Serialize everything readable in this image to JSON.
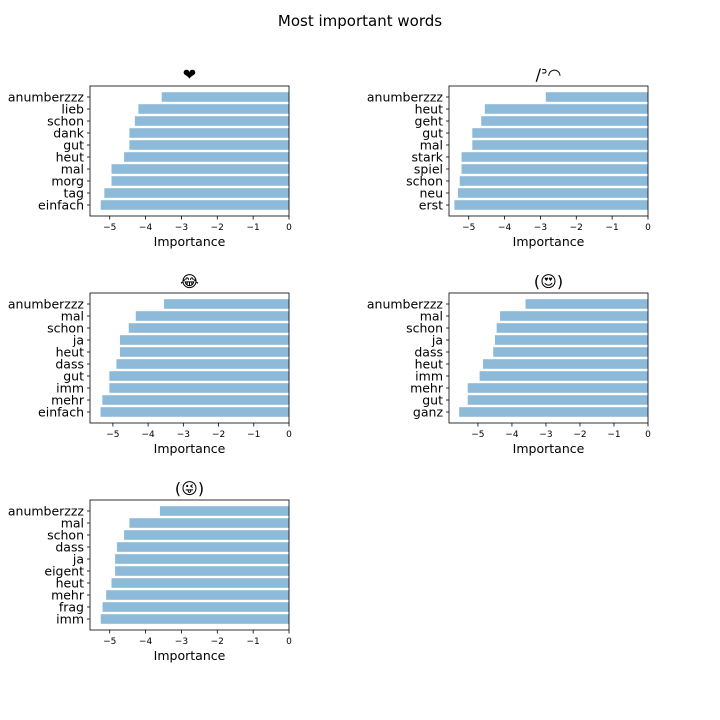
{
  "figure": {
    "title": "Most important words"
  },
  "chart_data": [
    {
      "type": "bar",
      "orientation": "horizontal",
      "title": "❤",
      "xlabel": "Importance",
      "ylabel": "",
      "xlim": [
        -5.55,
        0
      ],
      "xticks": [
        "−5",
        "−4",
        "−3",
        "−2",
        "−1",
        "0"
      ],
      "bar_color": "#8ebad9",
      "categories": [
        "anumberzzz",
        "lieb",
        "schon",
        "dank",
        "gut",
        "heut",
        "mal",
        "morg",
        "tag",
        "einfach"
      ],
      "values": [
        -3.55,
        -4.2,
        -4.3,
        -4.45,
        -4.45,
        -4.6,
        -4.95,
        -4.95,
        -5.15,
        -5.25
      ]
    },
    {
      "type": "bar",
      "orientation": "horizontal",
      "title": "/ᐣ◠",
      "xlabel": "Importance",
      "ylabel": "",
      "xlim": [
        -5.55,
        0
      ],
      "xticks": [
        "−5",
        "−4",
        "−3",
        "−2",
        "−1",
        "0"
      ],
      "bar_color": "#8ebad9",
      "categories": [
        "anumberzzz",
        "heut",
        "geht",
        "gut",
        "mal",
        "stark",
        "spiel",
        "schon",
        "neu",
        "erst"
      ],
      "values": [
        -2.85,
        -4.55,
        -4.65,
        -4.9,
        -4.9,
        -5.2,
        -5.2,
        -5.25,
        -5.3,
        -5.4
      ]
    },
    {
      "type": "bar",
      "orientation": "horizontal",
      "title": "😂",
      "xlabel": "Importance",
      "ylabel": "",
      "xlim": [
        -5.65,
        0
      ],
      "xticks": [
        "−5",
        "−4",
        "−3",
        "−2",
        "−1",
        "0"
      ],
      "bar_color": "#8ebad9",
      "categories": [
        "anumberzzz",
        "mal",
        "schon",
        "ja",
        "heut",
        "dass",
        "gut",
        "imm",
        "mehr",
        "einfach"
      ],
      "values": [
        -3.55,
        -4.35,
        -4.55,
        -4.8,
        -4.8,
        -4.9,
        -5.1,
        -5.1,
        -5.3,
        -5.35
      ]
    },
    {
      "type": "bar",
      "orientation": "horizontal",
      "title": "(😍)",
      "xlabel": "Importance",
      "ylabel": "",
      "xlim": [
        -5.85,
        0
      ],
      "xticks": [
        "−5",
        "−4",
        "−3",
        "−2",
        "−1",
        "0"
      ],
      "bar_color": "#8ebad9",
      "categories": [
        "anumberzzz",
        "mal",
        "schon",
        "ja",
        "dass",
        "heut",
        "imm",
        "mehr",
        "gut",
        "ganz"
      ],
      "values": [
        -3.6,
        -4.35,
        -4.45,
        -4.5,
        -4.55,
        -4.85,
        -4.95,
        -5.3,
        -5.3,
        -5.55
      ]
    },
    {
      "type": "bar",
      "orientation": "horizontal",
      "title": "(😜)",
      "xlabel": "Importance",
      "ylabel": "",
      "xlim": [
        -5.55,
        0
      ],
      "xticks": [
        "−5",
        "−4",
        "−3",
        "−2",
        "−1",
        "0"
      ],
      "bar_color": "#8ebad9",
      "categories": [
        "anumberzzz",
        "mal",
        "schon",
        "dass",
        "ja",
        "eigent",
        "heut",
        "mehr",
        "frag",
        "imm"
      ],
      "values": [
        -3.6,
        -4.45,
        -4.6,
        -4.8,
        -4.85,
        -4.85,
        -4.95,
        -5.1,
        -5.2,
        -5.25
      ]
    }
  ]
}
